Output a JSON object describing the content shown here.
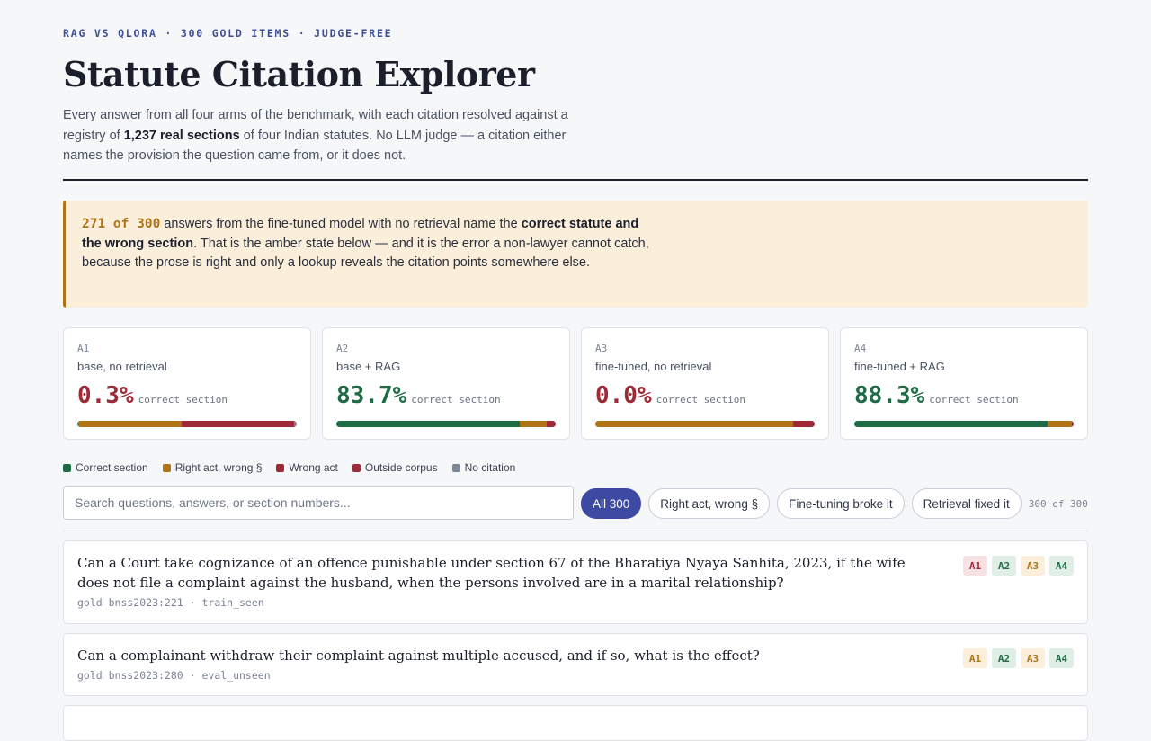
{
  "header": {
    "kicker": "RAG VS QLORA · 300 GOLD ITEMS · JUDGE-FREE",
    "title": "Statute Citation Explorer",
    "lede_part1": "Every answer from all four arms of the benchmark, with each citation resolved against a registry of ",
    "lede_bold": "1,237 real sections",
    "lede_part2": " of four Indian statutes. No LLM judge — a citation either names the provision the question came from, or it does not."
  },
  "callout": {
    "num": "271 of 300",
    "text1": " answers from the fine-tuned model with no retrieval name the ",
    "bold": "correct statute and the wrong section",
    "text2": ". That is the amber state below — and it is the error a non-lawyer cannot catch, because the prose is right and only a lookup reveals the citation points somewhere else."
  },
  "colors": {
    "correct": "#1f6b45",
    "right_act": "#b07316",
    "wrong_act": "#9e2a38",
    "outside": "#9a2c3c",
    "none": "#7d8597"
  },
  "arms": [
    {
      "id": "A1",
      "desc": "base, no retrieval",
      "pct": "0.3%",
      "unit": "correct section",
      "tone": "bad",
      "dist": {
        "correct": 0.3,
        "right_act": 47.3,
        "wrong_act": 51.0,
        "outside": 0.0,
        "none": 1.4
      }
    },
    {
      "id": "A2",
      "desc": "base + RAG",
      "pct": "83.7%",
      "unit": "correct section",
      "tone": "good",
      "dist": {
        "correct": 83.7,
        "right_act": 12.3,
        "wrong_act": 4.0,
        "outside": 0.0,
        "none": 0.0
      }
    },
    {
      "id": "A3",
      "desc": "fine-tuned, no retrieval",
      "pct": "0.0%",
      "unit": "correct section",
      "tone": "bad",
      "dist": {
        "correct": 0.0,
        "right_act": 90.3,
        "wrong_act": 9.7,
        "outside": 0.0,
        "none": 0.0
      }
    },
    {
      "id": "A4",
      "desc": "fine-tuned + RAG",
      "pct": "88.3%",
      "unit": "correct section",
      "tone": "good",
      "dist": {
        "correct": 88.3,
        "right_act": 11.0,
        "wrong_act": 0.7,
        "outside": 0.0,
        "none": 0.0
      }
    }
  ],
  "legend": [
    {
      "key": "correct",
      "label": "Correct section"
    },
    {
      "key": "right_act",
      "label": "Right act, wrong §"
    },
    {
      "key": "wrong_act",
      "label": "Wrong act"
    },
    {
      "key": "outside",
      "label": "Outside corpus"
    },
    {
      "key": "none",
      "label": "No citation"
    }
  ],
  "search": {
    "placeholder": "Search questions, answers, or section numbers..."
  },
  "filters": [
    {
      "label": "All 300",
      "active": true
    },
    {
      "label": "Right act, wrong §",
      "active": false
    },
    {
      "label": "Fine-tuning broke it",
      "active": false
    },
    {
      "label": "Retrieval fixed it",
      "active": false
    }
  ],
  "count": "300 of 300",
  "items": [
    {
      "question": "Can a Court take cognizance of an offence punishable under section 67 of the Bharatiya Nyaya Sanhita, 2023, if the wife does not file a complaint against the husband, when the persons involved are in a marital relationship?",
      "meta": "gold bnss2023:221 · train_seen",
      "tags": [
        {
          "label": "A1",
          "state": "wrongact"
        },
        {
          "label": "A2",
          "state": "correct"
        },
        {
          "label": "A3",
          "state": "rightact"
        },
        {
          "label": "A4",
          "state": "correct"
        }
      ]
    },
    {
      "question": "Can a complainant withdraw their complaint against multiple accused, and if so, what is the effect?",
      "meta": "gold bnss2023:280 · eval_unseen",
      "tags": [
        {
          "label": "A1",
          "state": "rightact"
        },
        {
          "label": "A2",
          "state": "correct"
        },
        {
          "label": "A3",
          "state": "rightact"
        },
        {
          "label": "A4",
          "state": "correct"
        }
      ]
    }
  ]
}
